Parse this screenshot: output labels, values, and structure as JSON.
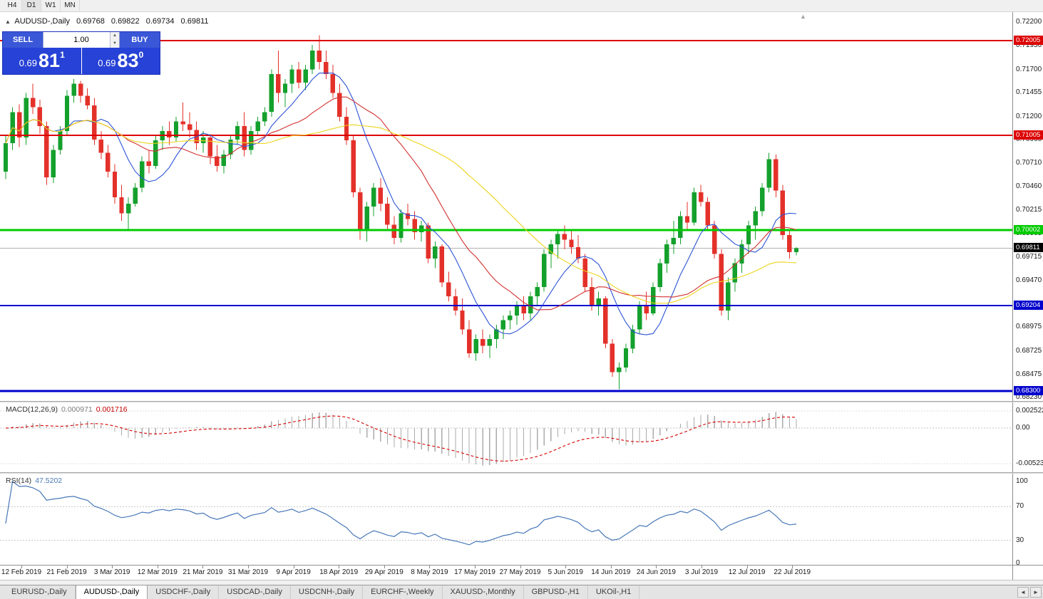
{
  "toolbar": {
    "timeframes": [
      "H4",
      "D1",
      "W1",
      "MN"
    ],
    "active": "D1"
  },
  "icons": {
    "oct_toggle": "▲",
    "shift_marker": "▲",
    "spinner_up": "▲",
    "spinner_down": "▼",
    "tab_scroll_left": "◄",
    "tab_scroll_right": "►"
  },
  "chart": {
    "symbol_title": "AUDUSD-,Daily",
    "ohlc": {
      "open": "0.69768",
      "high": "0.69822",
      "low": "0.69734",
      "close": "0.69811"
    },
    "trade_panel": {
      "sell_label": "SELL",
      "buy_label": "BUY",
      "volume": "1.00",
      "sell_price_head": "0.69",
      "sell_price_big": "81",
      "sell_price_sup": "1",
      "buy_price_head": "0.69",
      "buy_price_big": "83",
      "buy_price_sup": "0"
    },
    "price_scale_ticks": [
      "0.72200",
      "0.71950",
      "0.71700",
      "0.71455",
      "0.71200",
      "0.70960",
      "0.70710",
      "0.70460",
      "0.70215",
      "0.69965",
      "0.69715",
      "0.69470",
      "0.69220",
      "0.68975",
      "0.68725",
      "0.68475",
      "0.68230"
    ],
    "levels": [
      {
        "label": "0.72005",
        "value": 0.72005,
        "color": "#dd0000",
        "width": 2
      },
      {
        "label": "0.71005",
        "value": 0.71005,
        "color": "#dd0000",
        "width": 2
      },
      {
        "label": "0.70002",
        "value": 0.70002,
        "color": "#00cb00",
        "width": 3
      },
      {
        "label": "0.69204",
        "value": 0.69204,
        "color": "#0000cc",
        "width": 2
      },
      {
        "label": "0.68300",
        "value": 0.683,
        "color": "#0000cc",
        "width": 3
      }
    ],
    "current_price": {
      "label": "0.69811",
      "value": 0.69811
    }
  },
  "macd": {
    "label": "MACD(12,26,9)",
    "value1": "0.000971",
    "value2": "0.001716",
    "fast": 12,
    "slow": 26,
    "signal": 9,
    "scale": [
      {
        "label": "0.002522",
        "value": 0.002522
      },
      {
        "label": "0.00",
        "value": 0
      },
      {
        "label": "-0.005234",
        "value": -0.005234
      }
    ]
  },
  "rsi": {
    "label": "RSI(14)",
    "value": "47.5202",
    "period": 14,
    "guides": [
      70,
      30
    ],
    "scale": [
      {
        "label": "100",
        "value": 100
      },
      {
        "label": "70",
        "value": 70
      },
      {
        "label": "30",
        "value": 30
      },
      {
        "label": "0",
        "value": 0
      }
    ]
  },
  "tabs": [
    {
      "label": "EURUSD-,Daily",
      "active": false
    },
    {
      "label": "AUDUSD-,Daily",
      "active": true
    },
    {
      "label": "USDCHF-,Daily",
      "active": false
    },
    {
      "label": "USDCAD-,Daily",
      "active": false
    },
    {
      "label": "USDCNH-,Daily",
      "active": false
    },
    {
      "label": "EURCHF-,Weekly",
      "active": false
    },
    {
      "label": "XAUUSD-,Monthly",
      "active": false
    },
    {
      "label": "GBPUSD-,H1",
      "active": false
    },
    {
      "label": "UKOil-,H1",
      "active": false
    }
  ],
  "colors": {
    "bull": "#14a02c",
    "bear": "#e3312a",
    "ma_fast": "#2d53d6",
    "ma_mid": "#d23030",
    "ma_slow": "#ecd41c",
    "macd_hist": "#ababab",
    "macd_signal": "#d40000",
    "rsi_line": "#4878b8",
    "level_red": "#dd0000",
    "level_green": "#00cb00",
    "level_blue": "#0000cc",
    "panel_blue": "#2742d6",
    "button_blue": "#3a57d7",
    "bid_line": "#b0b0b0"
  },
  "chart_data": {
    "type": "candlestick",
    "symbol": "AUDUSD",
    "timeframe": "Daily",
    "title": "AUDUSD-,Daily  0.69768 0.69822 0.69734 0.69811",
    "y_range": [
      0.6823,
      0.722
    ],
    "x_axis_dates": [
      "12 Feb 2019",
      "21 Feb 2019",
      "3 Mar 2019",
      "12 Mar 2019",
      "21 Mar 2019",
      "31 Mar 2019",
      "9 Apr 2019",
      "18 Apr 2019",
      "29 Apr 2019",
      "8 May 2019",
      "17 May 2019",
      "27 May 2019",
      "5 Jun 2019",
      "14 Jun 2019",
      "24 Jun 2019",
      "3 Jul 2019",
      "12 Jul 2019",
      "22 Jul 2019"
    ],
    "moving_averages": [
      {
        "period": 8,
        "color": "#2d53d6"
      },
      {
        "period": 17,
        "color": "#d23030"
      },
      {
        "period": 34,
        "color": "#ecd41c"
      }
    ],
    "candles": [
      [
        0.7062,
        0.71,
        0.7054,
        0.7092
      ],
      [
        0.7092,
        0.713,
        0.7085,
        0.7125
      ],
      [
        0.7125,
        0.7133,
        0.7088,
        0.7098
      ],
      [
        0.7098,
        0.7145,
        0.709,
        0.714
      ],
      [
        0.714,
        0.7155,
        0.7123,
        0.713
      ],
      [
        0.713,
        0.7138,
        0.7102,
        0.711
      ],
      [
        0.711,
        0.7115,
        0.7048,
        0.7056
      ],
      [
        0.7056,
        0.709,
        0.705,
        0.7085
      ],
      [
        0.7085,
        0.711,
        0.708,
        0.7105
      ],
      [
        0.7105,
        0.7148,
        0.71,
        0.7142
      ],
      [
        0.7142,
        0.716,
        0.7135,
        0.7155
      ],
      [
        0.7155,
        0.7158,
        0.7135,
        0.7142
      ],
      [
        0.7142,
        0.715,
        0.7128,
        0.7132
      ],
      [
        0.7132,
        0.714,
        0.709,
        0.7096
      ],
      [
        0.7096,
        0.7105,
        0.7075,
        0.7082
      ],
      [
        0.7082,
        0.709,
        0.7056,
        0.7062
      ],
      [
        0.7062,
        0.707,
        0.7028,
        0.7035
      ],
      [
        0.7035,
        0.7048,
        0.701,
        0.7018
      ],
      [
        0.7018,
        0.7035,
        0.7,
        0.7028
      ],
      [
        0.7028,
        0.705,
        0.7025,
        0.7045
      ],
      [
        0.7045,
        0.7078,
        0.704,
        0.7073
      ],
      [
        0.7073,
        0.7085,
        0.706,
        0.7068
      ],
      [
        0.7068,
        0.71,
        0.7065,
        0.7095
      ],
      [
        0.7095,
        0.711,
        0.7085,
        0.7105
      ],
      [
        0.7105,
        0.7115,
        0.709,
        0.7098
      ],
      [
        0.7098,
        0.712,
        0.7093,
        0.7115
      ],
      [
        0.7115,
        0.7135,
        0.7105,
        0.7112
      ],
      [
        0.7112,
        0.7125,
        0.7098,
        0.7106
      ],
      [
        0.7106,
        0.7115,
        0.7085,
        0.7092
      ],
      [
        0.7092,
        0.7105,
        0.7082,
        0.7098
      ],
      [
        0.7098,
        0.7102,
        0.707,
        0.7078
      ],
      [
        0.7078,
        0.709,
        0.7062,
        0.7068
      ],
      [
        0.7068,
        0.7085,
        0.706,
        0.708
      ],
      [
        0.708,
        0.71,
        0.7075,
        0.7096
      ],
      [
        0.7096,
        0.7115,
        0.709,
        0.711
      ],
      [
        0.711,
        0.7125,
        0.7078,
        0.7085
      ],
      [
        0.7085,
        0.711,
        0.708,
        0.7105
      ],
      [
        0.7105,
        0.712,
        0.71,
        0.7115
      ],
      [
        0.7115,
        0.713,
        0.711,
        0.7125
      ],
      [
        0.7125,
        0.717,
        0.712,
        0.7165
      ],
      [
        0.7165,
        0.719,
        0.7135,
        0.7145
      ],
      [
        0.7145,
        0.716,
        0.713,
        0.7155
      ],
      [
        0.7155,
        0.7175,
        0.7145,
        0.717
      ],
      [
        0.717,
        0.7178,
        0.715,
        0.7156
      ],
      [
        0.7156,
        0.7175,
        0.7148,
        0.717
      ],
      [
        0.717,
        0.7196,
        0.7165,
        0.719
      ],
      [
        0.719,
        0.7206,
        0.717,
        0.7178
      ],
      [
        0.7178,
        0.719,
        0.716,
        0.7165
      ],
      [
        0.7165,
        0.7175,
        0.714,
        0.7145
      ],
      [
        0.7145,
        0.7155,
        0.7115,
        0.712
      ],
      [
        0.712,
        0.713,
        0.709,
        0.7095
      ],
      [
        0.7095,
        0.71,
        0.7035,
        0.704
      ],
      [
        0.704,
        0.7045,
        0.699,
        0.7
      ],
      [
        0.7,
        0.703,
        0.6988,
        0.7025
      ],
      [
        0.7025,
        0.705,
        0.7015,
        0.7045
      ],
      [
        0.7045,
        0.7055,
        0.702,
        0.7028
      ],
      [
        0.7028,
        0.7035,
        0.7,
        0.7006
      ],
      [
        0.7006,
        0.7015,
        0.6985,
        0.6992
      ],
      [
        0.6992,
        0.7022,
        0.6987,
        0.7018
      ],
      [
        0.7018,
        0.7028,
        0.7005,
        0.7012
      ],
      [
        0.7012,
        0.702,
        0.699,
        0.6998
      ],
      [
        0.6998,
        0.701,
        0.6988,
        0.7005
      ],
      [
        0.7005,
        0.7008,
        0.6965,
        0.697
      ],
      [
        0.697,
        0.6988,
        0.696,
        0.6983
      ],
      [
        0.6983,
        0.6985,
        0.694,
        0.6945
      ],
      [
        0.6945,
        0.6956,
        0.6925,
        0.693
      ],
      [
        0.693,
        0.6938,
        0.691,
        0.6915
      ],
      [
        0.6915,
        0.6928,
        0.689,
        0.6895
      ],
      [
        0.6895,
        0.6905,
        0.6865,
        0.687
      ],
      [
        0.687,
        0.689,
        0.6862,
        0.6885
      ],
      [
        0.6885,
        0.6895,
        0.687,
        0.6878
      ],
      [
        0.6878,
        0.689,
        0.6865,
        0.6885
      ],
      [
        0.6885,
        0.69,
        0.6875,
        0.6895
      ],
      [
        0.6895,
        0.691,
        0.6885,
        0.6905
      ],
      [
        0.6905,
        0.6915,
        0.6895,
        0.691
      ],
      [
        0.691,
        0.6925,
        0.69,
        0.692
      ],
      [
        0.692,
        0.693,
        0.6905,
        0.6912
      ],
      [
        0.6912,
        0.6935,
        0.6905,
        0.693
      ],
      [
        0.693,
        0.6945,
        0.692,
        0.694
      ],
      [
        0.694,
        0.698,
        0.6935,
        0.6975
      ],
      [
        0.6975,
        0.699,
        0.696,
        0.6985
      ],
      [
        0.6985,
        0.7,
        0.697,
        0.6996
      ],
      [
        0.6996,
        0.7005,
        0.698,
        0.699
      ],
      [
        0.699,
        0.7,
        0.6975,
        0.6982
      ],
      [
        0.6982,
        0.6995,
        0.6965,
        0.697
      ],
      [
        0.697,
        0.6975,
        0.6935,
        0.694
      ],
      [
        0.694,
        0.695,
        0.6915,
        0.692
      ],
      [
        0.692,
        0.6935,
        0.691,
        0.6928
      ],
      [
        0.6928,
        0.693,
        0.6875,
        0.688
      ],
      [
        0.688,
        0.6885,
        0.6845,
        0.685
      ],
      [
        0.685,
        0.686,
        0.6832,
        0.6855
      ],
      [
        0.6855,
        0.688,
        0.685,
        0.6875
      ],
      [
        0.6875,
        0.69,
        0.687,
        0.6895
      ],
      [
        0.6895,
        0.6925,
        0.689,
        0.692
      ],
      [
        0.692,
        0.6935,
        0.6905,
        0.6912
      ],
      [
        0.6912,
        0.6945,
        0.691,
        0.694
      ],
      [
        0.694,
        0.697,
        0.6935,
        0.6965
      ],
      [
        0.6965,
        0.699,
        0.6955,
        0.6985
      ],
      [
        0.6985,
        0.701,
        0.6975,
        0.6992
      ],
      [
        0.6992,
        0.702,
        0.6985,
        0.7015
      ],
      [
        0.7015,
        0.703,
        0.7,
        0.7008
      ],
      [
        0.7008,
        0.7045,
        0.7005,
        0.704
      ],
      [
        0.704,
        0.7048,
        0.7025,
        0.703
      ],
      [
        0.703,
        0.7035,
        0.7,
        0.7005
      ],
      [
        0.7005,
        0.701,
        0.697,
        0.6975
      ],
      [
        0.6975,
        0.698,
        0.691,
        0.6915
      ],
      [
        0.6915,
        0.695,
        0.6905,
        0.6945
      ],
      [
        0.6945,
        0.697,
        0.6935,
        0.6965
      ],
      [
        0.6965,
        0.699,
        0.6955,
        0.6985
      ],
      [
        0.6985,
        0.701,
        0.6975,
        0.7005
      ],
      [
        0.7005,
        0.7025,
        0.699,
        0.702
      ],
      [
        0.702,
        0.705,
        0.7015,
        0.7045
      ],
      [
        0.7045,
        0.7082,
        0.704,
        0.7075
      ],
      [
        0.7075,
        0.708,
        0.7035,
        0.7042
      ],
      [
        0.7042,
        0.7048,
        0.699,
        0.6995
      ],
      [
        0.6995,
        0.7,
        0.697,
        0.69768
      ],
      [
        0.69768,
        0.69822,
        0.69734,
        0.69811
      ]
    ]
  }
}
